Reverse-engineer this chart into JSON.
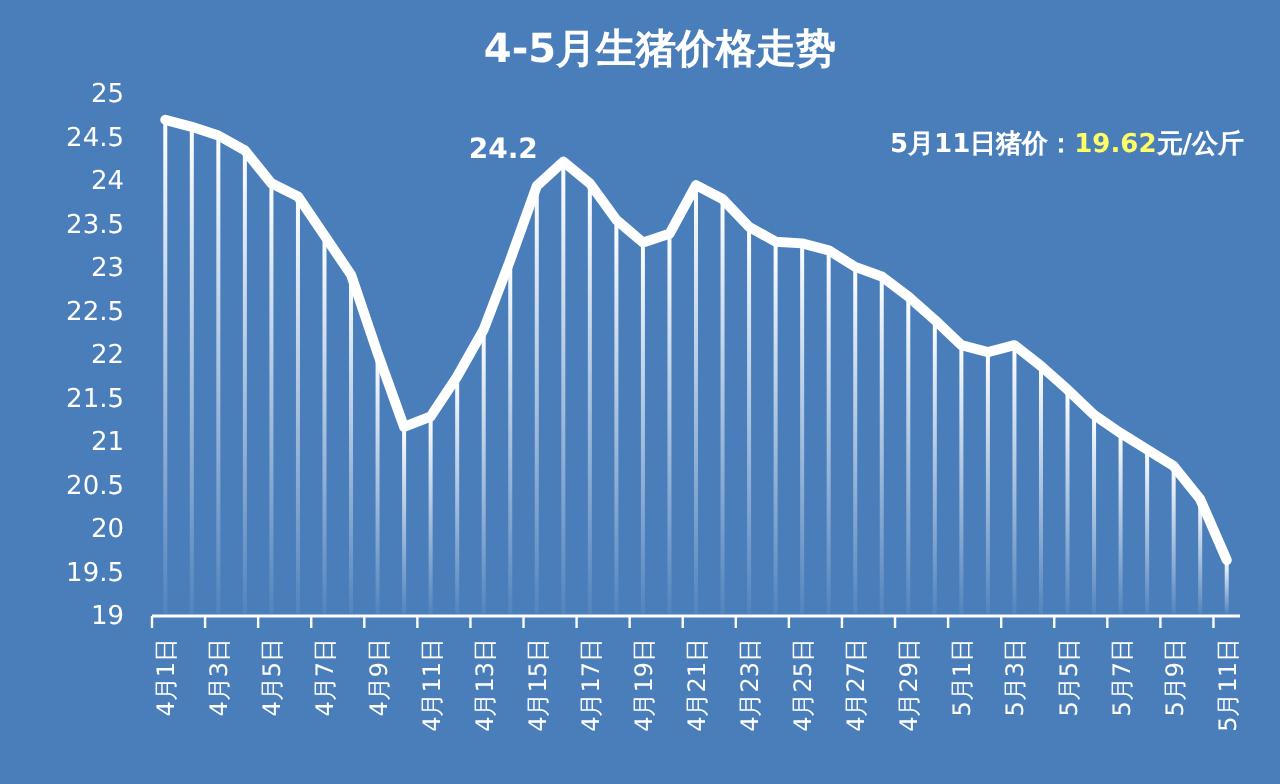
{
  "chart_data": {
    "type": "line",
    "title": "4-5月生猪价格走势",
    "categories": [
      "4月1日",
      null,
      "4月3日",
      null,
      "4月5日",
      null,
      "4月7日",
      null,
      "4月9日",
      null,
      "4月11日",
      null,
      "4月13日",
      null,
      "4月15日",
      null,
      "4月17日",
      null,
      "4月19日",
      null,
      "4月21日",
      null,
      "4月23日",
      null,
      "4月25日",
      null,
      "4月27日",
      null,
      "4月29日",
      null,
      "5月1日",
      null,
      "5月3日",
      null,
      "5月5日",
      null,
      "5月7日",
      null,
      "5月9日",
      null,
      "5月11日"
    ],
    "series": [
      {
        "type": "bar",
        "color": "#ffffff",
        "values": [
          24.68,
          24.6,
          24.5,
          24.33,
          23.95,
          23.8,
          23.35,
          22.9,
          22.0,
          21.15,
          21.27,
          21.73,
          22.27,
          23.07,
          23.92,
          24.2,
          23.95,
          23.53,
          23.27,
          23.37,
          23.93,
          23.77,
          23.45,
          23.28,
          23.26,
          23.18,
          22.99,
          22.88,
          22.65,
          22.38,
          22.09,
          22.01,
          22.09,
          21.85,
          21.58,
          21.29,
          21.08,
          20.89,
          20.7,
          20.32,
          19.62
        ]
      },
      {
        "color": "#ffffff",
        "values": [
          24.68,
          24.6,
          24.5,
          24.33,
          23.95,
          23.8,
          23.35,
          22.9,
          22.0,
          21.15,
          21.27,
          21.73,
          22.27,
          23.07,
          23.92,
          24.2,
          23.95,
          23.53,
          23.27,
          23.37,
          23.93,
          23.77,
          23.45,
          23.28,
          23.26,
          23.18,
          22.99,
          22.88,
          22.65,
          22.38,
          22.09,
          22.01,
          22.09,
          21.85,
          21.58,
          21.29,
          21.08,
          20.89,
          20.7,
          20.32,
          19.62
        ],
        "value_labels": [
          null,
          null,
          null,
          null,
          null,
          null,
          null,
          null,
          null,
          null,
          null,
          null,
          null,
          null,
          null,
          "24.2",
          null,
          null,
          null,
          null,
          null,
          null,
          null,
          null,
          null,
          null,
          null,
          null,
          null,
          null,
          null,
          null,
          null,
          null,
          null,
          null,
          null,
          null,
          null,
          null,
          null
        ]
      }
    ],
    "ylim": [
      19,
      25
    ],
    "yticks": [
      19,
      19.5,
      20,
      20.5,
      21,
      21.5,
      22,
      22.5,
      23,
      23.5,
      24,
      24.5,
      25
    ],
    "grid": false,
    "marker": "none",
    "line_style": "solid",
    "annotations": [
      "5月11日猪价：19.62元/公斤"
    ]
  }
}
